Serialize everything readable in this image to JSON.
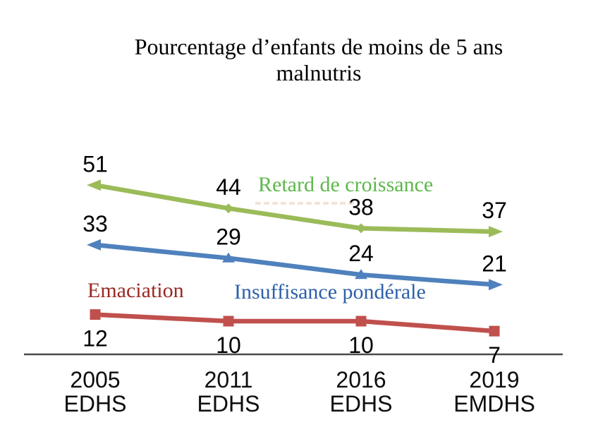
{
  "title": {
    "lines": [
      "Pourcentage d’enfants de moins de 5 ans",
      "malnutris"
    ]
  },
  "chart_data": {
    "type": "line",
    "title": "Pourcentage d’enfants de moins de 5 ans malnutris",
    "categories": [
      "2005 EDHS",
      "2011 EDHS",
      "2016 EDHS",
      "2019 EMDHS"
    ],
    "series": [
      {
        "id": "retard-de-croissance",
        "name": "Retard de croissance",
        "values": [
          51,
          44,
          38,
          37
        ],
        "color": "#9bbb59",
        "label_color": "#5cb84a",
        "marker": "diamond",
        "arrow_ends": true,
        "label_position": "above"
      },
      {
        "id": "insuffisance-ponderale",
        "name": "Insuffisance pondérale",
        "values": [
          33,
          29,
          24,
          21
        ],
        "color": "#4f81bd",
        "label_color": "#2d5faa",
        "marker": "triangle",
        "arrow_ends": true,
        "label_position": "above"
      },
      {
        "id": "emaciation",
        "name": "Emaciation",
        "values": [
          12,
          10,
          10,
          7
        ],
        "color": "#c0504d",
        "label_color": "#9b2823",
        "marker": "square",
        "arrow_ends": false,
        "label_position": "below"
      }
    ],
    "ylim": [
      0,
      55
    ],
    "xlabel": "",
    "ylabel": "",
    "grid": false,
    "legend": "inline-text-labels",
    "axis_color": "#4a4a4a",
    "value_label_color": "#000000"
  },
  "x_axis": {
    "labels": [
      [
        "2005",
        "EDHS"
      ],
      [
        "2011",
        "EDHS"
      ],
      [
        "2016",
        "EDHS"
      ],
      [
        "2019",
        "EMDHS"
      ]
    ]
  }
}
